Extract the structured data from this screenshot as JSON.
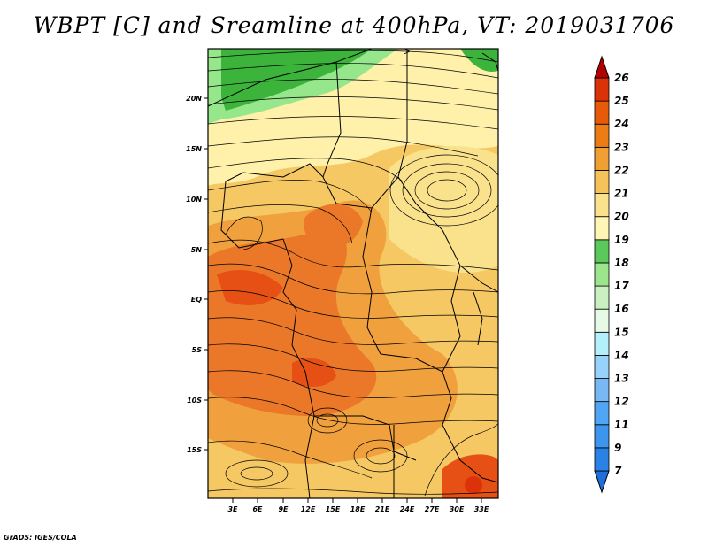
{
  "title": "WBPT [C] and Sreamline at 400hPa, VT: 2019031706",
  "footer": "GrADS: IGES/COLA",
  "map": {
    "lat_ticks": [
      "20N",
      "15N",
      "10N",
      "5N",
      "EQ",
      "5S",
      "10S",
      "15S"
    ],
    "lon_ticks": [
      "3E",
      "6E",
      "9E",
      "12E",
      "15E",
      "18E",
      "21E",
      "24E",
      "27E",
      "30E",
      "33E"
    ],
    "lat_range": [
      -20,
      24.5
    ],
    "lon_range": [
      0,
      35
    ]
  },
  "colorbar": {
    "labels": [
      "7",
      "9",
      "11",
      "12",
      "13",
      "14",
      "15",
      "16",
      "17",
      "18",
      "19",
      "20",
      "21",
      "22",
      "23",
      "24",
      "25",
      "26"
    ],
    "colors": [
      "#1e6edc",
      "#2a82e6",
      "#3c96f0",
      "#50a5f5",
      "#78b9f5",
      "#96d2fa",
      "#b4f0fa",
      "#e6fae6",
      "#c8f0c0",
      "#9be68c",
      "#5ac85a",
      "#fff5b4",
      "#fae18c",
      "#f5c35a",
      "#f0a032",
      "#eb7d14",
      "#e65a0a",
      "#dc320a",
      "#b40000"
    ]
  },
  "legend_colors": {
    "green_dark": "#3cb43c",
    "green_light": "#96e68c",
    "yellow_pale": "#fff0aa",
    "orange_light": "#f5c864",
    "orange": "#f0a03c",
    "orange_dark": "#eb7828",
    "red_orange": "#e65014"
  }
}
